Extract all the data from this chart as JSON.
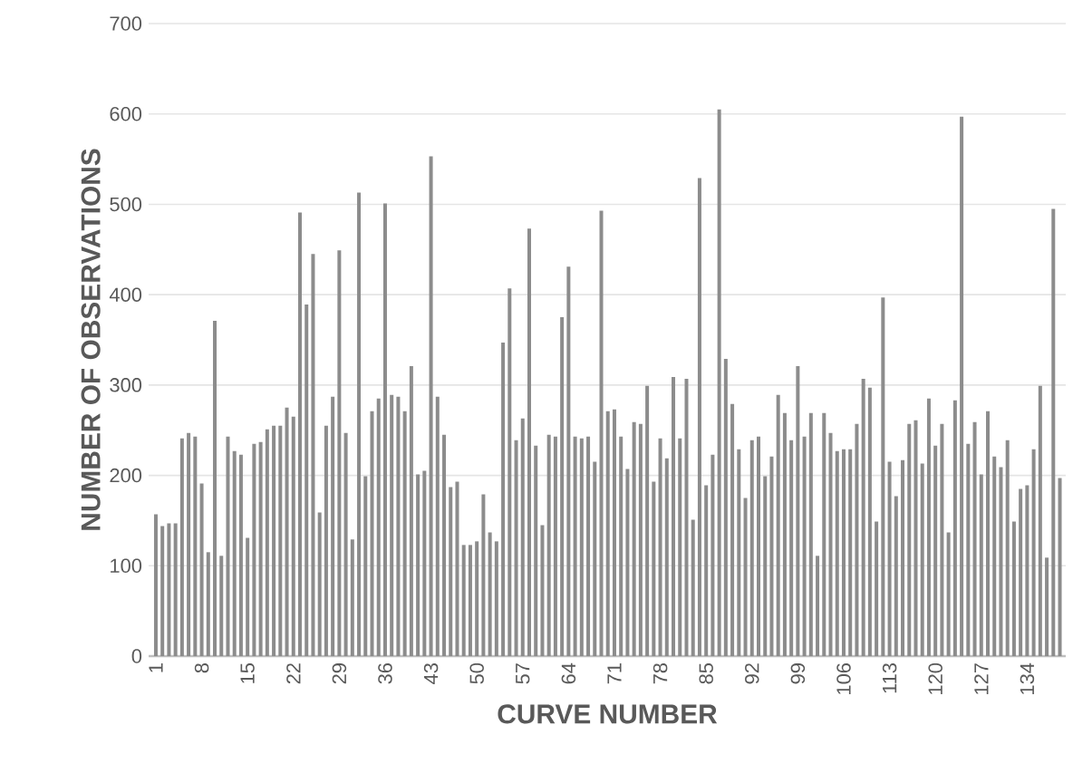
{
  "chart_data": {
    "type": "bar",
    "xlabel": "CURVE NUMBER",
    "ylabel": "NUMBER OF OBSERVATIONS",
    "categories": [
      "1",
      null,
      null,
      null,
      null,
      null,
      null,
      "8",
      null,
      null,
      null,
      null,
      null,
      null,
      "15",
      null,
      null,
      null,
      null,
      null,
      null,
      "22",
      null,
      null,
      null,
      null,
      null,
      null,
      "29",
      null,
      null,
      null,
      null,
      null,
      null,
      "36",
      null,
      null,
      null,
      null,
      null,
      null,
      "43",
      null,
      null,
      null,
      null,
      null,
      null,
      "50",
      null,
      null,
      null,
      null,
      null,
      null,
      "57",
      null,
      null,
      null,
      null,
      null,
      null,
      "64",
      null,
      null,
      null,
      null,
      null,
      null,
      "71",
      null,
      null,
      null,
      null,
      null,
      null,
      "78",
      null,
      null,
      null,
      null,
      null,
      null,
      "85",
      null,
      null,
      null,
      null,
      null,
      null,
      "92",
      null,
      null,
      null,
      null,
      null,
      null,
      "99",
      null,
      null,
      null,
      null,
      null,
      null,
      "106",
      null,
      null,
      null,
      null,
      null,
      null,
      "113",
      null,
      null,
      null,
      null,
      null,
      null,
      "120",
      null,
      null,
      null,
      null,
      null,
      null,
      "127",
      null,
      null,
      null,
      null,
      null,
      null,
      "134",
      null,
      null,
      null,
      null,
      null
    ],
    "values": [
      157,
      144,
      147,
      147,
      241,
      247,
      243,
      191,
      115,
      371,
      111,
      243,
      227,
      223,
      131,
      235,
      237,
      251,
      255,
      255,
      275,
      265,
      491,
      389,
      445,
      159,
      255,
      287,
      449,
      247,
      129,
      513,
      199,
      271,
      285,
      501,
      289,
      287,
      271,
      321,
      201,
      205,
      553,
      287,
      245,
      187,
      193,
      123,
      123,
      127,
      179,
      137,
      127,
      347,
      407,
      239,
      263,
      473,
      233,
      145,
      245,
      243,
      375,
      431,
      243,
      241,
      243,
      215,
      493,
      271,
      273,
      243,
      207,
      259,
      257,
      299,
      193,
      241,
      219,
      309,
      241,
      307,
      151,
      529,
      189,
      223,
      605,
      329,
      279,
      229,
      175,
      239,
      243,
      199,
      221,
      289,
      269,
      239,
      321,
      243,
      269,
      111,
      269,
      247,
      227,
      229,
      229,
      257,
      307,
      297,
      149,
      397,
      215,
      177,
      217,
      257,
      261,
      213,
      285,
      233,
      257,
      137,
      283,
      597,
      235,
      259,
      201,
      271,
      221,
      209,
      239,
      149,
      185,
      189,
      229,
      299,
      109,
      495,
      197
    ],
    "color": "#8c8c8c",
    "ylim": [
      0,
      700
    ],
    "yticks": [
      0,
      100,
      200,
      300,
      400,
      500,
      600,
      700
    ],
    "grid": "y"
  }
}
